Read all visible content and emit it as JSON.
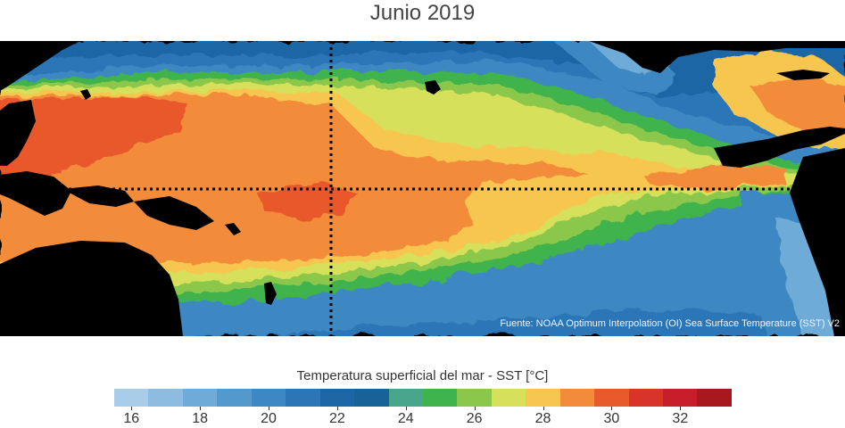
{
  "title": "Junio 2019",
  "map": {
    "source_text": "Fuente: NOAA Optimum Interpolation (OI) Sea Surface Temperature (SST) V2",
    "reference_lines": [
      "equator-line",
      "dateline-line"
    ]
  },
  "colorbar": {
    "label": "Temperatura superficial del mar - SST  [°C]",
    "colors": [
      "#a9cce8",
      "#8cbde0",
      "#6eabd6",
      "#5499cc",
      "#3c88c2",
      "#2a76b6",
      "#1c66a6",
      "#176298",
      "#4aa68a",
      "#3fb34d",
      "#8ac74b",
      "#d6e05a",
      "#f6c64f",
      "#f28c3a",
      "#e8592c",
      "#d8342a",
      "#c81e2a",
      "#a8191f"
    ],
    "tick_labels": [
      "16",
      "18",
      "20",
      "22",
      "24",
      "26",
      "28",
      "30",
      "32"
    ]
  }
}
